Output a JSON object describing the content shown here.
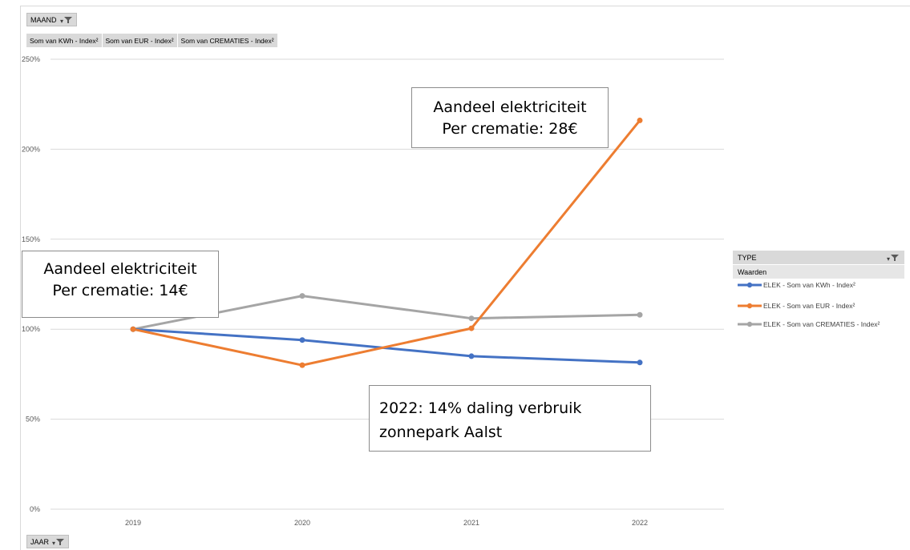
{
  "filters": {
    "maand_label": "MAAND",
    "jaar_label": "JAAR",
    "type_label": "TYPE",
    "waarden_label": "Waarden"
  },
  "value_fields": [
    "Som van KWh - Index²",
    "Som van EUR - Index²",
    "Som van CREMATIES - Index²"
  ],
  "annotations": {
    "top_right": [
      "Aandeel elektriciteit",
      "Per crematie: 28€"
    ],
    "left": [
      "Aandeel elektriciteit",
      "Per crematie: 14€"
    ],
    "bottom": [
      "2022: 14% daling verbruik",
      "zonnepark Aalst"
    ]
  },
  "colors": {
    "kwh": "#4472c4",
    "eur": "#ed7d31",
    "crematies": "#a5a5a5",
    "grid": "#d9d9d9",
    "tick_label": "#595959"
  },
  "chart_data": {
    "type": "line",
    "categories": [
      "2019",
      "2020",
      "2021",
      "2022"
    ],
    "series": [
      {
        "name": "ELEK - Som van KWh - Index²",
        "values": [
          100,
          94,
          85,
          81.5
        ]
      },
      {
        "name": "ELEK - Som van EUR - Index²",
        "values": [
          100,
          80,
          100.5,
          216
        ]
      },
      {
        "name": "ELEK - Som van CREMATIES - Index²",
        "values": [
          100,
          118.5,
          106,
          108
        ]
      }
    ],
    "y_tick_labels": [
      "0%",
      "50%",
      "100%",
      "150%",
      "200%",
      "250%"
    ],
    "ylim": [
      0,
      250
    ],
    "grid": true,
    "legend_position": "right"
  }
}
